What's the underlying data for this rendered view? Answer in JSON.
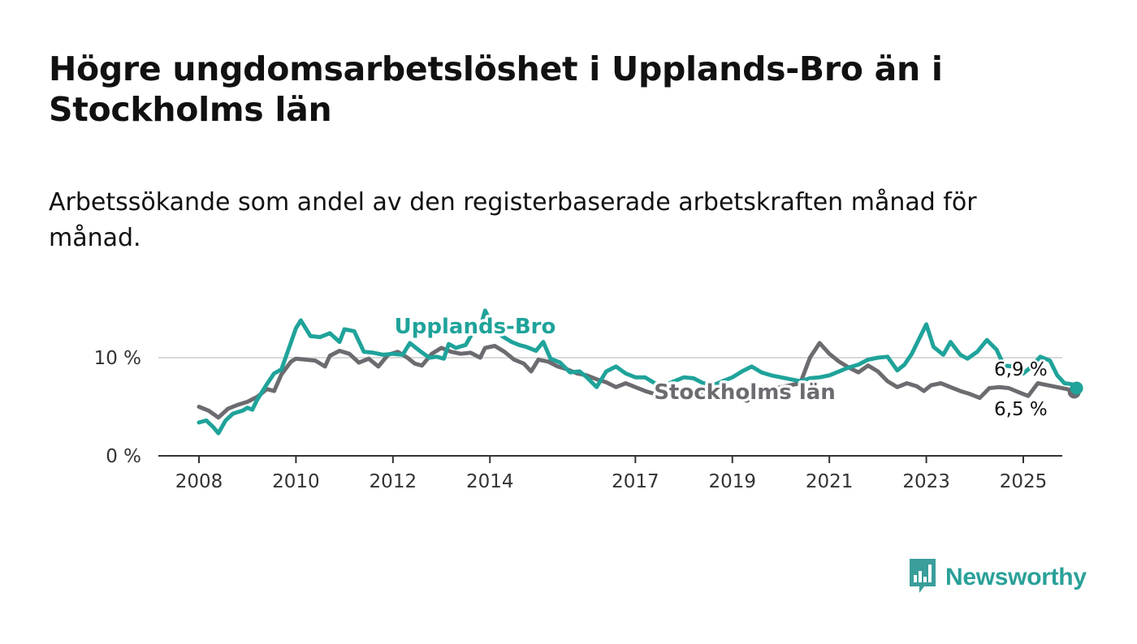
{
  "header": {
    "title": "Högre ungdomsarbetslöshet i Upplands-Bro än i Stockholms län",
    "subtitle": "Arbetssökande som andel av den registerbaserade arbetskraften månad för månad."
  },
  "brand": {
    "name": "Newsworthy",
    "icon": "newsworthy-logo-icon",
    "color": "#3a9e9a"
  },
  "chart_data": {
    "type": "line",
    "x_range": [
      2008,
      2025.5
    ],
    "ylim": [
      0,
      15
    ],
    "y_ticks": [
      {
        "value": 0,
        "label": "0 %"
      },
      {
        "value": 10,
        "label": "10 %"
      }
    ],
    "x_ticks": [
      {
        "value": 2008,
        "label": "2008"
      },
      {
        "value": 2010,
        "label": "2010"
      },
      {
        "value": 2012,
        "label": "2012"
      },
      {
        "value": 2014,
        "label": "2014"
      },
      {
        "value": 2017,
        "label": "2017"
      },
      {
        "value": 2019,
        "label": "2019"
      },
      {
        "value": 2021,
        "label": "2021"
      },
      {
        "value": 2023,
        "label": "2023"
      },
      {
        "value": 2025,
        "label": "2025"
      }
    ],
    "grid": true,
    "series": [
      {
        "name": "Stockholms län",
        "color": "#6b6b70",
        "label_value": "6,5 %",
        "points": [
          [
            2008.0,
            5.0
          ],
          [
            2008.2,
            4.6
          ],
          [
            2008.4,
            3.9
          ],
          [
            2008.6,
            4.8
          ],
          [
            2008.8,
            5.2
          ],
          [
            2009.0,
            5.5
          ],
          [
            2009.2,
            6.0
          ],
          [
            2009.4,
            6.8
          ],
          [
            2009.55,
            6.6
          ],
          [
            2009.7,
            8.3
          ],
          [
            2009.9,
            9.6
          ],
          [
            2010.0,
            9.9
          ],
          [
            2010.2,
            9.8
          ],
          [
            2010.4,
            9.7
          ],
          [
            2010.6,
            9.1
          ],
          [
            2010.7,
            10.2
          ],
          [
            2010.9,
            10.7
          ],
          [
            2011.1,
            10.4
          ],
          [
            2011.3,
            9.5
          ],
          [
            2011.5,
            9.9
          ],
          [
            2011.7,
            9.1
          ],
          [
            2011.9,
            10.3
          ],
          [
            2012.1,
            10.6
          ],
          [
            2012.3,
            10.0
          ],
          [
            2012.45,
            9.4
          ],
          [
            2012.6,
            9.2
          ],
          [
            2012.8,
            10.4
          ],
          [
            2013.0,
            11.0
          ],
          [
            2013.2,
            10.6
          ],
          [
            2013.4,
            10.4
          ],
          [
            2013.6,
            10.5
          ],
          [
            2013.8,
            10.0
          ],
          [
            2013.9,
            11.0
          ],
          [
            2014.1,
            11.2
          ],
          [
            2014.3,
            10.6
          ],
          [
            2014.5,
            9.8
          ],
          [
            2014.7,
            9.4
          ],
          [
            2014.85,
            8.6
          ],
          [
            2015.0,
            9.8
          ],
          [
            2015.2,
            9.6
          ],
          [
            2015.4,
            9.1
          ],
          [
            2015.6,
            8.8
          ],
          [
            2015.8,
            8.4
          ],
          [
            2016.0,
            8.2
          ],
          [
            2016.2,
            7.8
          ],
          [
            2016.4,
            7.5
          ],
          [
            2016.6,
            7.0
          ],
          [
            2016.8,
            7.4
          ],
          [
            2017.0,
            7.0
          ],
          [
            2017.2,
            6.6
          ],
          [
            2017.4,
            6.3
          ],
          [
            2017.6,
            6.6
          ],
          [
            2018.0,
            6.8
          ],
          [
            2018.5,
            6.4
          ],
          [
            2019.0,
            6.0
          ],
          [
            2019.3,
            5.6
          ],
          [
            2019.6,
            6.4
          ],
          [
            2020.0,
            7.0
          ],
          [
            2020.4,
            7.4
          ],
          [
            2020.6,
            10.0
          ],
          [
            2020.8,
            11.5
          ],
          [
            2021.0,
            10.4
          ],
          [
            2021.2,
            9.6
          ],
          [
            2021.4,
            9.0
          ],
          [
            2021.6,
            8.5
          ],
          [
            2021.8,
            9.2
          ],
          [
            2022.0,
            8.6
          ],
          [
            2022.2,
            7.6
          ],
          [
            2022.4,
            7.0
          ],
          [
            2022.6,
            7.4
          ],
          [
            2022.8,
            7.1
          ],
          [
            2022.95,
            6.6
          ],
          [
            2023.1,
            7.2
          ],
          [
            2023.3,
            7.4
          ],
          [
            2023.5,
            7.0
          ],
          [
            2023.7,
            6.6
          ],
          [
            2023.9,
            6.3
          ],
          [
            2024.1,
            5.9
          ],
          [
            2024.3,
            6.9
          ],
          [
            2024.5,
            7.0
          ],
          [
            2024.7,
            6.9
          ],
          [
            2024.9,
            6.5
          ],
          [
            2025.1,
            6.1
          ],
          [
            2025.3,
            7.4
          ],
          [
            2025.5,
            7.2
          ],
          [
            2025.7,
            7.0
          ],
          [
            2025.9,
            6.8
          ],
          [
            2026.05,
            6.5
          ]
        ]
      },
      {
        "name": "Upplands-Bro",
        "color": "#1fa39a",
        "label_value": "6,9 %",
        "points": [
          [
            2008.0,
            3.4
          ],
          [
            2008.15,
            3.6
          ],
          [
            2008.3,
            2.9
          ],
          [
            2008.4,
            2.3
          ],
          [
            2008.55,
            3.6
          ],
          [
            2008.7,
            4.3
          ],
          [
            2008.9,
            4.6
          ],
          [
            2009.0,
            4.9
          ],
          [
            2009.1,
            4.7
          ],
          [
            2009.2,
            5.7
          ],
          [
            2009.4,
            7.3
          ],
          [
            2009.55,
            8.4
          ],
          [
            2009.7,
            8.8
          ],
          [
            2009.85,
            10.9
          ],
          [
            2010.0,
            13.0
          ],
          [
            2010.1,
            13.8
          ],
          [
            2010.3,
            12.2
          ],
          [
            2010.5,
            12.1
          ],
          [
            2010.7,
            12.5
          ],
          [
            2010.9,
            11.6
          ],
          [
            2011.0,
            12.9
          ],
          [
            2011.2,
            12.7
          ],
          [
            2011.4,
            10.6
          ],
          [
            2011.6,
            10.5
          ],
          [
            2011.8,
            10.3
          ],
          [
            2012.0,
            10.4
          ],
          [
            2012.2,
            10.3
          ],
          [
            2012.35,
            11.5
          ],
          [
            2012.55,
            10.7
          ],
          [
            2012.75,
            10.0
          ],
          [
            2012.9,
            10.1
          ],
          [
            2013.05,
            9.9
          ],
          [
            2013.15,
            11.4
          ],
          [
            2013.3,
            11.0
          ],
          [
            2013.5,
            11.3
          ],
          [
            2013.65,
            12.6
          ],
          [
            2013.8,
            13.0
          ],
          [
            2013.9,
            14.8
          ],
          [
            2014.05,
            13.3
          ],
          [
            2014.25,
            12.2
          ],
          [
            2014.45,
            11.6
          ],
          [
            2014.6,
            11.3
          ],
          [
            2014.75,
            11.1
          ],
          [
            2014.95,
            10.7
          ],
          [
            2015.1,
            11.6
          ],
          [
            2015.25,
            9.9
          ],
          [
            2015.45,
            9.5
          ],
          [
            2015.65,
            8.5
          ],
          [
            2015.85,
            8.6
          ],
          [
            2016.0,
            8.0
          ],
          [
            2016.2,
            7.0
          ],
          [
            2016.4,
            8.6
          ],
          [
            2016.6,
            9.1
          ],
          [
            2016.8,
            8.4
          ],
          [
            2017.0,
            8.0
          ],
          [
            2017.2,
            8.0
          ],
          [
            2017.4,
            7.4
          ],
          [
            2017.6,
            7.2
          ],
          [
            2017.8,
            7.6
          ],
          [
            2018.0,
            8.0
          ],
          [
            2018.2,
            7.9
          ],
          [
            2018.4,
            7.4
          ],
          [
            2018.6,
            7.2
          ],
          [
            2018.8,
            7.6
          ],
          [
            2019.0,
            8.0
          ],
          [
            2019.2,
            8.6
          ],
          [
            2019.4,
            9.1
          ],
          [
            2019.6,
            8.5
          ],
          [
            2019.8,
            8.2
          ],
          [
            2020.0,
            8.0
          ],
          [
            2020.2,
            7.8
          ],
          [
            2020.4,
            7.6
          ],
          [
            2020.6,
            7.9
          ],
          [
            2020.8,
            8.0
          ],
          [
            2021.0,
            8.2
          ],
          [
            2021.2,
            8.6
          ],
          [
            2021.4,
            9.0
          ],
          [
            2021.6,
            9.3
          ],
          [
            2021.8,
            9.8
          ],
          [
            2022.0,
            10.0
          ],
          [
            2022.2,
            10.1
          ],
          [
            2022.4,
            8.7
          ],
          [
            2022.55,
            9.3
          ],
          [
            2022.7,
            10.4
          ],
          [
            2022.85,
            11.9
          ],
          [
            2023.0,
            13.4
          ],
          [
            2023.15,
            11.1
          ],
          [
            2023.35,
            10.3
          ],
          [
            2023.5,
            11.6
          ],
          [
            2023.7,
            10.3
          ],
          [
            2023.85,
            9.9
          ],
          [
            2024.05,
            10.6
          ],
          [
            2024.25,
            11.8
          ],
          [
            2024.45,
            10.8
          ],
          [
            2024.6,
            9.2
          ],
          [
            2024.8,
            9.1
          ],
          [
            2025.0,
            8.4
          ],
          [
            2025.15,
            9.0
          ],
          [
            2025.35,
            10.1
          ],
          [
            2025.55,
            9.7
          ],
          [
            2025.7,
            8.2
          ],
          [
            2025.85,
            7.4
          ],
          [
            2026.0,
            7.3
          ],
          [
            2026.1,
            6.9
          ]
        ]
      }
    ]
  }
}
